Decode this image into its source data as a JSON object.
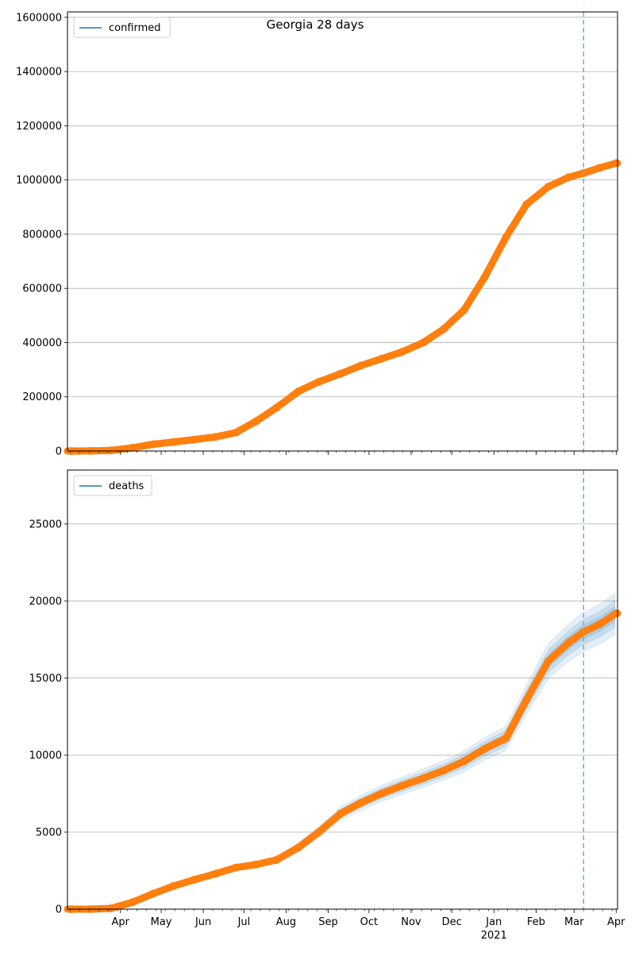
{
  "chart_data": [
    {
      "type": "line",
      "title": "Georgia 28 days",
      "legend": {
        "label": "confirmed",
        "placement": "top-left"
      },
      "ylim": [
        0,
        1620000
      ],
      "yticks": [
        0,
        200000,
        400000,
        600000,
        800000,
        1000000,
        1200000,
        1400000,
        1600000
      ],
      "grid_y": true,
      "forecast_start": "2021-03-08",
      "series": [
        {
          "name": "confirmed",
          "x": [
            "2020-02-25",
            "2020-03-10",
            "2020-03-25",
            "2020-04-10",
            "2020-04-25",
            "2020-05-10",
            "2020-05-25",
            "2020-06-10",
            "2020-06-25",
            "2020-07-10",
            "2020-07-25",
            "2020-08-10",
            "2020-08-25",
            "2020-09-10",
            "2020-09-25",
            "2020-10-10",
            "2020-10-25",
            "2020-11-10",
            "2020-11-25",
            "2020-12-10",
            "2020-12-25",
            "2021-01-10",
            "2021-01-25",
            "2021-02-10",
            "2021-02-25",
            "2021-03-08",
            "2021-03-20",
            "2021-04-01"
          ],
          "values": [
            0,
            300,
            2000,
            12000,
            25000,
            33000,
            42000,
            52000,
            68000,
            110000,
            160000,
            220000,
            255000,
            285000,
            315000,
            340000,
            365000,
            400000,
            450000,
            520000,
            640000,
            790000,
            910000,
            975000,
            1010000,
            1025000,
            1045000,
            1062000
          ]
        }
      ]
    },
    {
      "type": "line",
      "legend": {
        "label": "deaths",
        "placement": "top-left"
      },
      "ylim": [
        0,
        28500
      ],
      "yticks": [
        0,
        5000,
        10000,
        15000,
        20000,
        25000
      ],
      "grid_y": true,
      "forecast_start": "2021-03-08",
      "x_tick_labels": [
        "Apr",
        "May",
        "Jun",
        "Jul",
        "Aug",
        "Sep",
        "Oct",
        "Nov",
        "Dec",
        "Jan",
        "Feb",
        "Mar",
        "Apr"
      ],
      "x_tick_dates": [
        "2020-04-01",
        "2020-05-01",
        "2020-06-01",
        "2020-07-01",
        "2020-08-01",
        "2020-09-01",
        "2020-10-01",
        "2020-11-01",
        "2020-12-01",
        "2021-01-01",
        "2021-02-01",
        "2021-03-01",
        "2021-04-01"
      ],
      "x_year_label": "2021",
      "series": [
        {
          "name": "deaths",
          "x": [
            "2020-02-25",
            "2020-03-10",
            "2020-03-25",
            "2020-04-10",
            "2020-04-25",
            "2020-05-10",
            "2020-05-25",
            "2020-06-10",
            "2020-06-25",
            "2020-07-10",
            "2020-07-25",
            "2020-08-10",
            "2020-08-25",
            "2020-09-10",
            "2020-09-25",
            "2020-10-10",
            "2020-10-25",
            "2020-11-10",
            "2020-11-25",
            "2020-12-10",
            "2020-12-25",
            "2021-01-10",
            "2021-01-25",
            "2021-02-10",
            "2021-02-25",
            "2021-03-08",
            "2021-03-20",
            "2021-04-01"
          ],
          "values": [
            0,
            0,
            50,
            450,
            1000,
            1500,
            1900,
            2300,
            2700,
            2900,
            3200,
            4000,
            5000,
            6200,
            6900,
            7500,
            8000,
            8500,
            9000,
            9600,
            10400,
            11100,
            13600,
            16100,
            17300,
            18000,
            18500,
            19200
          ]
        }
      ]
    }
  ],
  "colors": {
    "series": "#ff7f0e",
    "legend_line": "#1f77b4",
    "forecast_line": "#6aaed6",
    "band": "#1f77b4",
    "grid": "#b0b0b0"
  }
}
